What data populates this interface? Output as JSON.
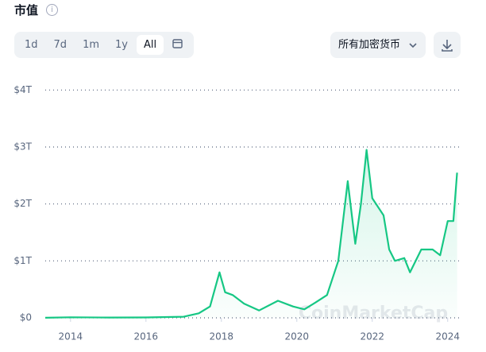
{
  "chart_data": {
    "type": "line",
    "title": "市值",
    "x": [
      2013.33,
      2014,
      2015,
      2016,
      2017,
      2017.4,
      2017.7,
      2017.95,
      2018.1,
      2018.3,
      2018.6,
      2019,
      2019.5,
      2019.9,
      2020.2,
      2020.5,
      2020.8,
      2021.1,
      2021.35,
      2021.55,
      2021.7,
      2021.85,
      2022.0,
      2022.3,
      2022.45,
      2022.6,
      2022.85,
      2023.0,
      2023.3,
      2023.6,
      2023.8,
      2024.0,
      2024.15,
      2024.25
    ],
    "values": [
      0.001,
      0.01,
      0.005,
      0.007,
      0.02,
      0.08,
      0.2,
      0.8,
      0.45,
      0.4,
      0.25,
      0.13,
      0.3,
      0.2,
      0.15,
      0.27,
      0.4,
      1.0,
      2.4,
      1.3,
      2.0,
      2.95,
      2.1,
      1.8,
      1.2,
      1.0,
      1.05,
      0.8,
      1.2,
      1.2,
      1.1,
      1.7,
      1.7,
      2.55
    ],
    "color": "#16c784",
    "xlim": [
      2013.33,
      2024.3
    ],
    "xticks": [
      2014,
      2016,
      2018,
      2020,
      2022,
      2024
    ],
    "ylim": [
      0,
      4.2
    ],
    "yticks": [
      {
        "value": 0,
        "label": "$0"
      },
      {
        "value": 1,
        "label": "$1T"
      },
      {
        "value": 2,
        "label": "$2T"
      },
      {
        "value": 3,
        "label": "$3T"
      },
      {
        "value": 4,
        "label": "$4T"
      }
    ],
    "grid": true,
    "watermark": "CoinMarketCap"
  },
  "controls": {
    "ranges": [
      "1d",
      "7d",
      "1m",
      "1y",
      "All"
    ],
    "active": "All",
    "dropdown": "所有加密货币"
  }
}
